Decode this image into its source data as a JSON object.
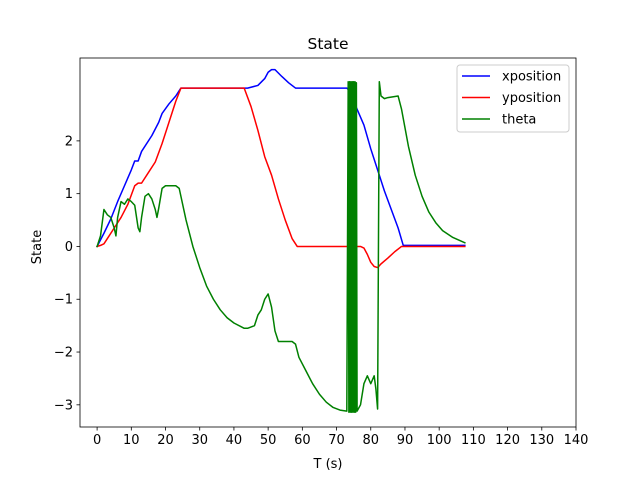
{
  "chart_data": {
    "type": "line",
    "title": "State",
    "xlabel": "T (s)",
    "ylabel": "State",
    "xlim": [
      -5,
      140
    ],
    "ylim": [
      -3.42,
      3.57
    ],
    "xticks": [
      0,
      10,
      20,
      30,
      40,
      50,
      60,
      70,
      80,
      90,
      100,
      110,
      120,
      130,
      140
    ],
    "yticks": [
      -3,
      -2,
      -1,
      0,
      1,
      2
    ],
    "grid": false,
    "legend_position": "top-right",
    "series": [
      {
        "name": "xposition",
        "color": "#0000ff",
        "points": [
          [
            0,
            0
          ],
          [
            2,
            0.25
          ],
          [
            4,
            0.52
          ],
          [
            6,
            0.85
          ],
          [
            8,
            1.15
          ],
          [
            10,
            1.45
          ],
          [
            11,
            1.62
          ],
          [
            12,
            1.62
          ],
          [
            13,
            1.8
          ],
          [
            16,
            2.1
          ],
          [
            18,
            2.35
          ],
          [
            19,
            2.52
          ],
          [
            21,
            2.7
          ],
          [
            23,
            2.85
          ],
          [
            24.5,
            3.0
          ],
          [
            44,
            3.0
          ],
          [
            47,
            3.05
          ],
          [
            49,
            3.18
          ],
          [
            50,
            3.3
          ],
          [
            51,
            3.35
          ],
          [
            52,
            3.35
          ],
          [
            54,
            3.22
          ],
          [
            56,
            3.1
          ],
          [
            58,
            3.0
          ],
          [
            73,
            3.0
          ],
          [
            73.5,
            2.97
          ],
          [
            75,
            2.75
          ],
          [
            78,
            2.3
          ],
          [
            80,
            1.85
          ],
          [
            82,
            1.45
          ],
          [
            84,
            1.05
          ],
          [
            86,
            0.7
          ],
          [
            88,
            0.35
          ],
          [
            89.5,
            0.02
          ],
          [
            107.5,
            0.02
          ]
        ]
      },
      {
        "name": "yposition",
        "color": "#ff0000",
        "points": [
          [
            0,
            0
          ],
          [
            1,
            0.02
          ],
          [
            2,
            0.05
          ],
          [
            3,
            0.15
          ],
          [
            5,
            0.35
          ],
          [
            7,
            0.55
          ],
          [
            9,
            0.8
          ],
          [
            11,
            1.15
          ],
          [
            12,
            1.2
          ],
          [
            13,
            1.2
          ],
          [
            15,
            1.4
          ],
          [
            17,
            1.6
          ],
          [
            19,
            1.95
          ],
          [
            21,
            2.35
          ],
          [
            23,
            2.75
          ],
          [
            24.5,
            3.0
          ],
          [
            43,
            3.0
          ],
          [
            45,
            2.65
          ],
          [
            47,
            2.2
          ],
          [
            49,
            1.7
          ],
          [
            51,
            1.35
          ],
          [
            53,
            0.9
          ],
          [
            55,
            0.5
          ],
          [
            57,
            0.15
          ],
          [
            58.5,
            0.0
          ],
          [
            77,
            0.0
          ],
          [
            78,
            -0.03
          ],
          [
            79,
            -0.15
          ],
          [
            80,
            -0.3
          ],
          [
            81,
            -0.38
          ],
          [
            82,
            -0.4
          ],
          [
            83,
            -0.33
          ],
          [
            85,
            -0.22
          ],
          [
            87,
            -0.1
          ],
          [
            89,
            0.0
          ],
          [
            107.5,
            0.0
          ]
        ]
      },
      {
        "name": "theta",
        "color": "#008000",
        "points": [
          [
            0,
            0
          ],
          [
            1,
            0.2
          ],
          [
            2,
            0.7
          ],
          [
            3,
            0.6
          ],
          [
            4,
            0.55
          ],
          [
            5,
            0.35
          ],
          [
            5.5,
            0.2
          ],
          [
            6,
            0.55
          ],
          [
            7,
            0.85
          ],
          [
            8,
            0.8
          ],
          [
            9,
            0.9
          ],
          [
            10,
            0.85
          ],
          [
            11,
            0.78
          ],
          [
            12,
            0.35
          ],
          [
            12.5,
            0.28
          ],
          [
            13,
            0.55
          ],
          [
            14,
            0.95
          ],
          [
            15,
            1.0
          ],
          [
            16,
            0.9
          ],
          [
            17,
            0.7
          ],
          [
            17.5,
            0.55
          ],
          [
            18,
            0.72
          ],
          [
            19,
            1.1
          ],
          [
            20,
            1.15
          ],
          [
            22,
            1.15
          ],
          [
            23,
            1.15
          ],
          [
            24,
            1.1
          ],
          [
            26,
            0.5
          ],
          [
            28,
            0.0
          ],
          [
            30,
            -0.4
          ],
          [
            32,
            -0.75
          ],
          [
            34,
            -1.0
          ],
          [
            36,
            -1.2
          ],
          [
            38,
            -1.35
          ],
          [
            40,
            -1.45
          ],
          [
            43,
            -1.55
          ],
          [
            44,
            -1.55
          ],
          [
            46,
            -1.5
          ],
          [
            47,
            -1.3
          ],
          [
            48,
            -1.2
          ],
          [
            49,
            -1.0
          ],
          [
            50,
            -0.9
          ],
          [
            51,
            -1.15
          ],
          [
            52,
            -1.6
          ],
          [
            53,
            -1.8
          ],
          [
            57,
            -1.8
          ],
          [
            58,
            -1.85
          ],
          [
            59,
            -2.1
          ],
          [
            61,
            -2.35
          ],
          [
            63,
            -2.6
          ],
          [
            65,
            -2.8
          ],
          [
            67,
            -2.95
          ],
          [
            69,
            -3.05
          ],
          [
            71,
            -3.1
          ],
          [
            73,
            -3.12
          ],
          [
            73.4,
            3.12
          ],
          [
            73.6,
            -3.14
          ],
          [
            73.8,
            3.12
          ],
          [
            74.0,
            -3.14
          ],
          [
            74.2,
            3.12
          ],
          [
            74.4,
            -3.14
          ],
          [
            74.6,
            3.12
          ],
          [
            74.8,
            -3.14
          ],
          [
            75.0,
            3.12
          ],
          [
            75.2,
            -3.14
          ],
          [
            75.4,
            3.12
          ],
          [
            75.6,
            -3.14
          ],
          [
            75.8,
            3.1
          ],
          [
            76,
            -3.12
          ],
          [
            77,
            -3.0
          ],
          [
            78,
            -2.6
          ],
          [
            79,
            -2.45
          ],
          [
            80,
            -2.6
          ],
          [
            81,
            -2.45
          ],
          [
            81.5,
            -2.7
          ],
          [
            82,
            -3.08
          ],
          [
            82.5,
            3.12
          ],
          [
            83,
            2.85
          ],
          [
            84,
            2.8
          ],
          [
            85,
            2.82
          ],
          [
            88,
            2.85
          ],
          [
            89,
            2.6
          ],
          [
            91,
            1.9
          ],
          [
            93,
            1.35
          ],
          [
            95,
            0.95
          ],
          [
            97,
            0.65
          ],
          [
            99,
            0.45
          ],
          [
            101,
            0.3
          ],
          [
            104,
            0.17
          ],
          [
            107.5,
            0.07
          ]
        ]
      }
    ]
  }
}
